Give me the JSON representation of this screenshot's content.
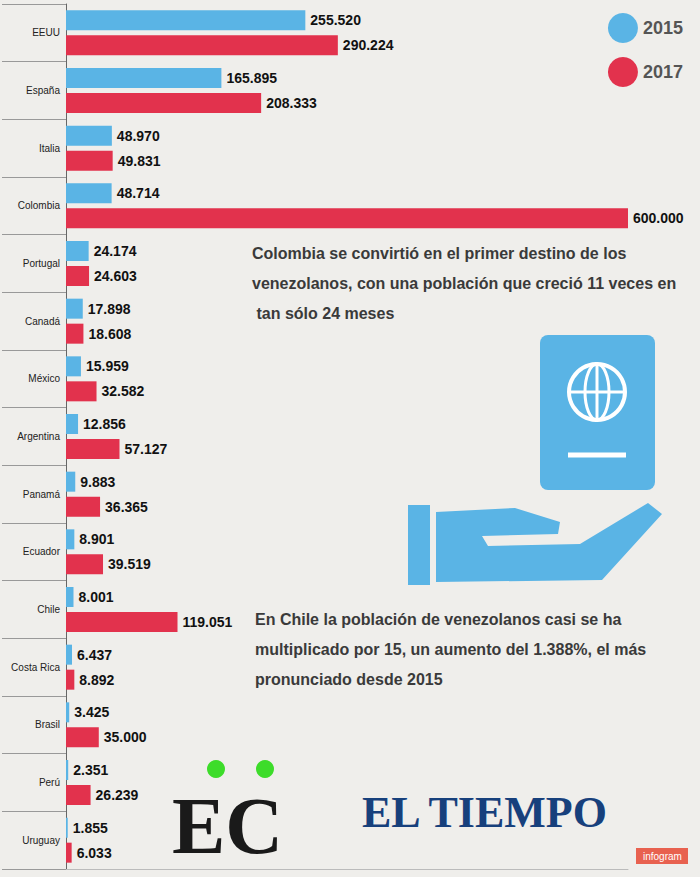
{
  "chart_data": {
    "type": "bar",
    "orientation": "horizontal",
    "categories": [
      "EEUU",
      "España",
      "Italia",
      "Colombia",
      "Portugal",
      "Canadá",
      "México",
      "Argentina",
      "Panamá",
      "Ecuador",
      "Chile",
      "Costa Rica",
      "Brasil",
      "Perú",
      "Uruguay"
    ],
    "series": [
      {
        "name": "2015",
        "color": "#5ab4e5",
        "values": [
          255520,
          165895,
          48970,
          48714,
          24174,
          17898,
          15959,
          12856,
          9883,
          8901,
          8001,
          6437,
          3425,
          2351,
          1855
        ],
        "value_labels": [
          "255.520",
          "165.895",
          "48.970",
          "48.714",
          "24.174",
          "17.898",
          "15.959",
          "12.856",
          "9.883",
          "8.901",
          "8.001",
          "6.437",
          "3.425",
          "2.351",
          "1.855"
        ]
      },
      {
        "name": "2017",
        "color": "#e2324d",
        "values": [
          290224,
          208333,
          49831,
          600000,
          24603,
          18608,
          32582,
          57127,
          36365,
          39519,
          119051,
          8892,
          35000,
          26239,
          6033
        ],
        "value_labels": [
          "290.224",
          "208.333",
          "49.831",
          "600.000",
          "24.603",
          "18.608",
          "32.582",
          "57.127",
          "36.365",
          "39.519",
          "119.051",
          "8.892",
          "35.000",
          "26.239",
          "6.033"
        ]
      }
    ],
    "xlim": [
      0,
      600000
    ],
    "tick_labels": "y",
    "grid": false,
    "legend": "top-right",
    "data_labels": true,
    "annotations": [
      "Colombia se convirtió en el primer destino de los venezolanos, con una población que creció 11 veces en tan sólo 24 meses",
      "En Chile la población de venezolanos casi se ha multiplicado por 15, un aumento del 1.388%, el más pronunciado desde 2015"
    ],
    "credits": [
      "EC",
      "EL TIEMPO",
      "infogram"
    ]
  }
}
